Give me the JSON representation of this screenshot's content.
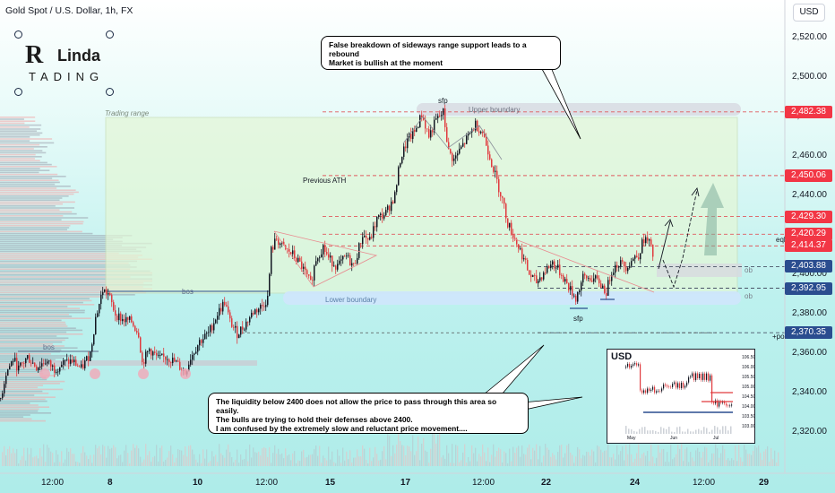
{
  "header": {
    "title": "Gold Spot / U.S. Dollar, 1h, FX",
    "currency_button": "USD"
  },
  "logo": {
    "big": "R",
    "name": "Linda",
    "sub": "TADING"
  },
  "callouts": {
    "top": [
      "False breakdown of sideways range support leads to a rebound",
      "Market is bullish at the moment"
    ],
    "bottom": [
      "The liquidity below 2400 does not allow the price to pass through this area so easily.",
      "The bulls are trying to hold their defenses above 2400.",
      "I am confused by the extremely slow and reluctant price movement...."
    ]
  },
  "annotations": {
    "trading_range": "Trading range",
    "upper_boundary": "Upper boundary",
    "lower_boundary": "Lower boundary",
    "previous_ath": "Previous ATH",
    "sfp_top": "sfp",
    "sfp_bottom": "sfp",
    "bos_1": "bos",
    "bos_2": "bos",
    "eql": "eql",
    "ob_1": "ob",
    "ob_2": "ob",
    "poi": "+poi"
  },
  "colors": {
    "bull": "#131722",
    "bear": "#e03a3e",
    "red_tag": "#f23645",
    "blue_tag": "#2a4d8f",
    "range_fill": "#e4f7d6",
    "boundary_blue": "#cfe6fb"
  },
  "inset": {
    "title": "USD",
    "y_ticks": [
      "106.50",
      "106.00",
      "105.50",
      "105.00",
      "104.50",
      "104.00",
      "103.50",
      "103.00"
    ],
    "x_ticks": [
      "May",
      "Jun",
      "Jul"
    ]
  },
  "chart_data": {
    "type": "candlestick",
    "title": "Gold Spot / U.S. Dollar, 1h, FX",
    "y_axis": {
      "ticks": [
        2320,
        2340,
        2360,
        2380,
        2400,
        2420,
        2440,
        2460,
        2480,
        2500,
        2520
      ],
      "tick_labels": [
        "2,320.00",
        "2,340.00",
        "2,360.00",
        "2,380.00",
        "2,400.00",
        "2,420.00",
        "2,440.00",
        "2,460.00",
        "2,480.00",
        "2,500.00",
        "2,520.00"
      ],
      "range": [
        2310,
        2532
      ]
    },
    "x_axis": {
      "tick_labels": [
        "12:00",
        "8",
        "10",
        "12:00",
        "15",
        "17",
        "12:00",
        "22",
        "24",
        "12:00",
        "29"
      ]
    },
    "price_levels": [
      {
        "label": "2,482.38",
        "value": 2482.38,
        "kind": "red"
      },
      {
        "label": "2,450.06",
        "value": 2450.06,
        "kind": "red"
      },
      {
        "label": "2,429.30",
        "value": 2429.3,
        "kind": "red"
      },
      {
        "label": "2,420.29",
        "value": 2420.29,
        "kind": "red"
      },
      {
        "label": "2,414.37",
        "value": 2414.37,
        "kind": "red"
      },
      {
        "label": "2,403.88",
        "value": 2403.88,
        "kind": "blue"
      },
      {
        "label": "2,392.95",
        "value": 2392.95,
        "kind": "blue"
      },
      {
        "label": "2,370.35",
        "value": 2370.35,
        "kind": "blue"
      }
    ],
    "close_path_approx": [
      [
        0,
        2337
      ],
      [
        6,
        2350
      ],
      [
        14,
        2357
      ],
      [
        20,
        2352
      ],
      [
        30,
        2358
      ],
      [
        40,
        2353
      ],
      [
        50,
        2356
      ],
      [
        60,
        2352
      ],
      [
        70,
        2355
      ],
      [
        80,
        2356
      ],
      [
        90,
        2352
      ],
      [
        100,
        2360
      ],
      [
        106,
        2378
      ],
      [
        114,
        2392
      ],
      [
        120,
        2390
      ],
      [
        128,
        2380
      ],
      [
        136,
        2377
      ],
      [
        146,
        2376
      ],
      [
        154,
        2370
      ],
      [
        158,
        2355
      ],
      [
        166,
        2362
      ],
      [
        176,
        2357
      ],
      [
        186,
        2358
      ],
      [
        196,
        2355
      ],
      [
        206,
        2350
      ],
      [
        212,
        2358
      ],
      [
        222,
        2366
      ],
      [
        232,
        2370
      ],
      [
        242,
        2380
      ],
      [
        250,
        2386
      ],
      [
        256,
        2376
      ],
      [
        264,
        2370
      ],
      [
        272,
        2374
      ],
      [
        282,
        2381
      ],
      [
        292,
        2384
      ],
      [
        298,
        2388
      ],
      [
        302,
        2412
      ],
      [
        308,
        2418
      ],
      [
        316,
        2413
      ],
      [
        326,
        2410
      ],
      [
        336,
        2404
      ],
      [
        346,
        2395
      ],
      [
        352,
        2408
      ],
      [
        360,
        2414
      ],
      [
        366,
        2408
      ],
      [
        376,
        2404
      ],
      [
        386,
        2409
      ],
      [
        394,
        2404
      ],
      [
        404,
        2420
      ],
      [
        412,
        2417
      ],
      [
        420,
        2428
      ],
      [
        430,
        2431
      ],
      [
        440,
        2440
      ],
      [
        446,
        2458
      ],
      [
        454,
        2468
      ],
      [
        462,
        2472
      ],
      [
        470,
        2481
      ],
      [
        478,
        2470
      ],
      [
        486,
        2478
      ],
      [
        494,
        2482
      ],
      [
        500,
        2462
      ],
      [
        506,
        2458
      ],
      [
        514,
        2464
      ],
      [
        522,
        2470
      ],
      [
        530,
        2476
      ],
      [
        538,
        2472
      ],
      [
        546,
        2460
      ],
      [
        554,
        2447
      ],
      [
        560,
        2438
      ],
      [
        566,
        2426
      ],
      [
        574,
        2418
      ],
      [
        582,
        2410
      ],
      [
        590,
        2400
      ],
      [
        598,
        2396
      ],
      [
        608,
        2402
      ],
      [
        616,
        2406
      ],
      [
        626,
        2400
      ],
      [
        636,
        2392
      ],
      [
        642,
        2388
      ],
      [
        650,
        2398
      ],
      [
        660,
        2398
      ],
      [
        668,
        2396
      ],
      [
        676,
        2391
      ],
      [
        682,
        2402
      ],
      [
        690,
        2406
      ],
      [
        698,
        2404
      ],
      [
        706,
        2408
      ],
      [
        712,
        2410
      ],
      [
        718,
        2418
      ],
      [
        724,
        2416
      ],
      [
        730,
        2406
      ]
    ]
  }
}
